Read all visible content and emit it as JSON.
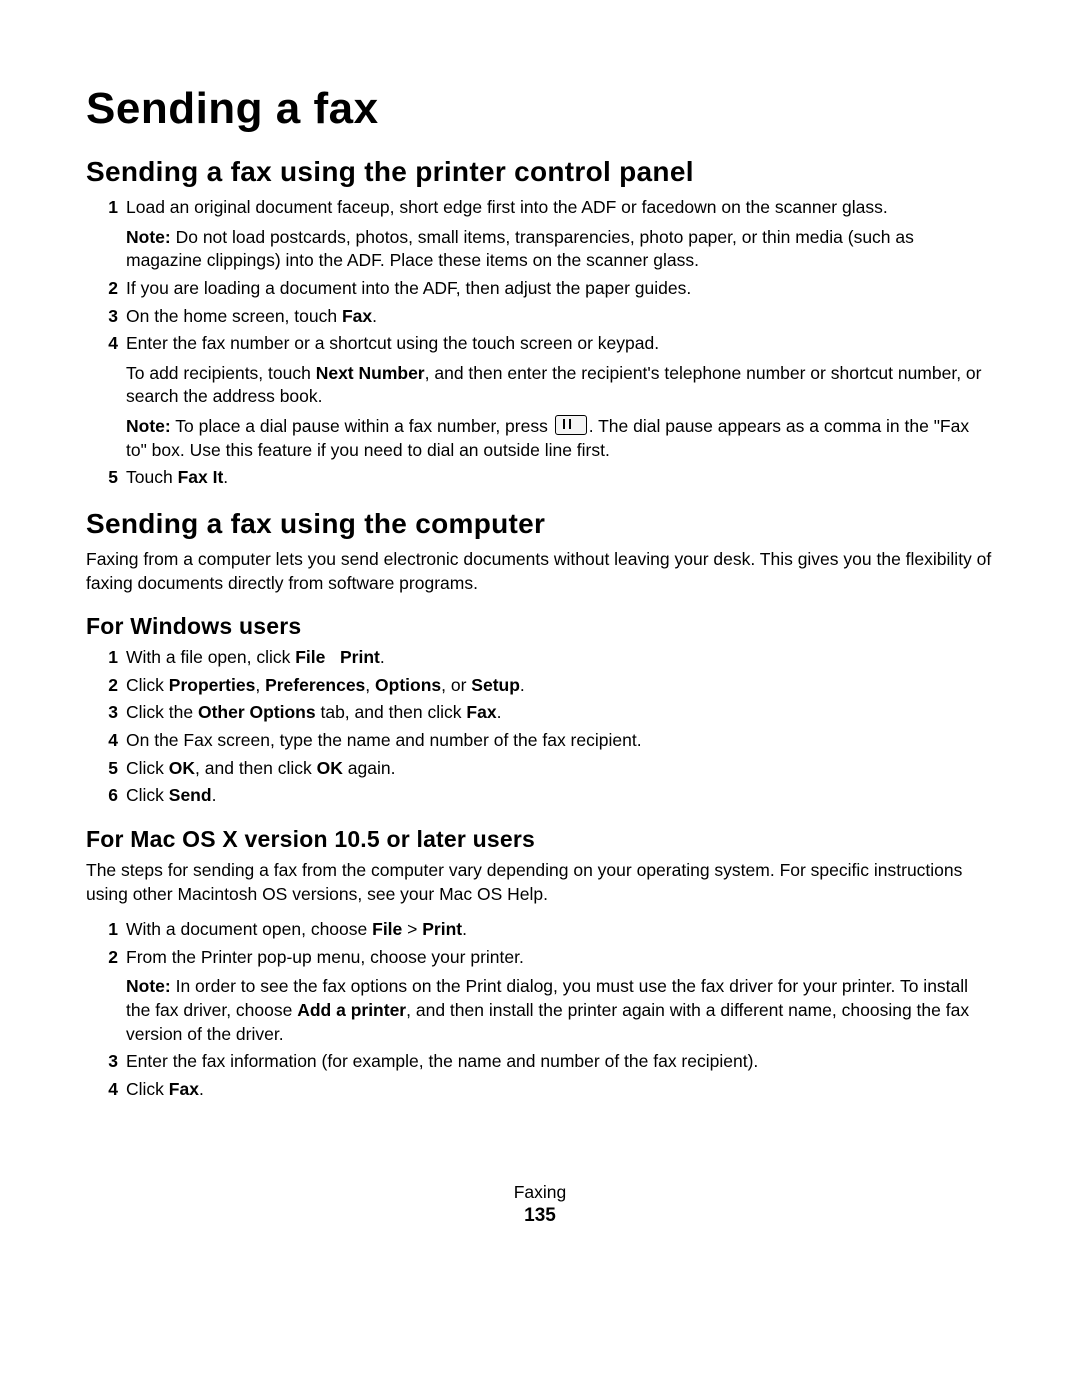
{
  "title": "Sending a fax",
  "footer": {
    "chapter": "Faxing",
    "page": "135"
  },
  "sections": [
    {
      "heading": "Sending a fax using the printer control panel",
      "steps": [
        {
          "num": "1",
          "text": "Load an original document faceup, short edge first into the ADF or facedown on the scanner glass.",
          "notes": [
            {
              "label": "Note:",
              "text": " Do not load postcards, photos, small items, transparencies, photo paper, or thin media (such as magazine clippings) into the ADF. Place these items on the scanner glass."
            }
          ]
        },
        {
          "num": "2",
          "text": "If you are loading a document into the ADF, then adjust the paper guides."
        },
        {
          "num": "3",
          "text": "On the home screen, touch ",
          "trailing_bold": "Fax",
          "trailing_after": "."
        },
        {
          "num": "4",
          "text": "Enter the fax number or a shortcut using the touch screen or keypad.",
          "notes": [
            {
              "text_pre": "To add recipients, touch ",
              "bold1": "Next Number",
              "text_post": ", and then enter the recipient's telephone number or shortcut number, or search the address book."
            },
            {
              "label": "Note:",
              "text_pre": " To place a dial pause within a fax number, press ",
              "icon": true,
              "text_post": ". The dial pause appears as a comma in the \"Fax to\" box. Use this feature if you need to dial an outside line first."
            }
          ]
        },
        {
          "num": "5",
          "text": "Touch ",
          "trailing_bold": "Fax It",
          "trailing_after": "."
        }
      ]
    },
    {
      "heading": "Sending a fax using the computer",
      "intro": "Faxing from a computer lets you send electronic documents without leaving your desk. This gives you the flexibility of faxing documents directly from software programs.",
      "subsections": [
        {
          "heading": "For Windows users",
          "steps": [
            {
              "num": "1",
              "parts": [
                "With a file open, click ",
                {
                  "b": "File"
                },
                "   ",
                {
                  "b": "Print"
                },
                "."
              ]
            },
            {
              "num": "2",
              "parts": [
                "Click ",
                {
                  "b": "Properties"
                },
                ", ",
                {
                  "b": "Preferences"
                },
                ", ",
                {
                  "b": "Options"
                },
                ", or ",
                {
                  "b": "Setup"
                },
                "."
              ]
            },
            {
              "num": "3",
              "parts": [
                "Click the ",
                {
                  "b": "Other Options"
                },
                " tab, and then click ",
                {
                  "b": "Fax"
                },
                "."
              ]
            },
            {
              "num": "4",
              "parts": [
                "On the Fax screen, type the name and number of the fax recipient."
              ]
            },
            {
              "num": "5",
              "parts": [
                "Click ",
                {
                  "b": "OK"
                },
                ", and then click ",
                {
                  "b": "OK"
                },
                " again."
              ]
            },
            {
              "num": "6",
              "parts": [
                "Click ",
                {
                  "b": "Send"
                },
                "."
              ]
            }
          ]
        },
        {
          "heading": "For Mac OS X version 10.5 or later users",
          "intro": "The steps for sending a fax from the computer vary depending on your operating system. For specific instructions using other Macintosh OS versions, see your Mac OS Help.",
          "steps": [
            {
              "num": "1",
              "parts": [
                "With a document open, choose ",
                {
                  "b": "File"
                },
                " > ",
                {
                  "b": "Print"
                },
                "."
              ]
            },
            {
              "num": "2",
              "parts": [
                "From the Printer pop-up menu, choose your printer."
              ],
              "notes": [
                {
                  "label": "Note:",
                  "parts": [
                    " In order to see the fax options on the Print dialog, you must use the fax driver for your printer. To install the fax driver, choose ",
                    {
                      "b": "Add a printer"
                    },
                    ", and then install the printer again with a different name, choosing the fax version of the driver."
                  ]
                }
              ]
            },
            {
              "num": "3",
              "parts": [
                "Enter the fax information (for example, the name and number of the fax recipient)."
              ]
            },
            {
              "num": "4",
              "parts": [
                "Click ",
                {
                  "b": "Fax"
                },
                "."
              ]
            }
          ]
        }
      ]
    }
  ]
}
